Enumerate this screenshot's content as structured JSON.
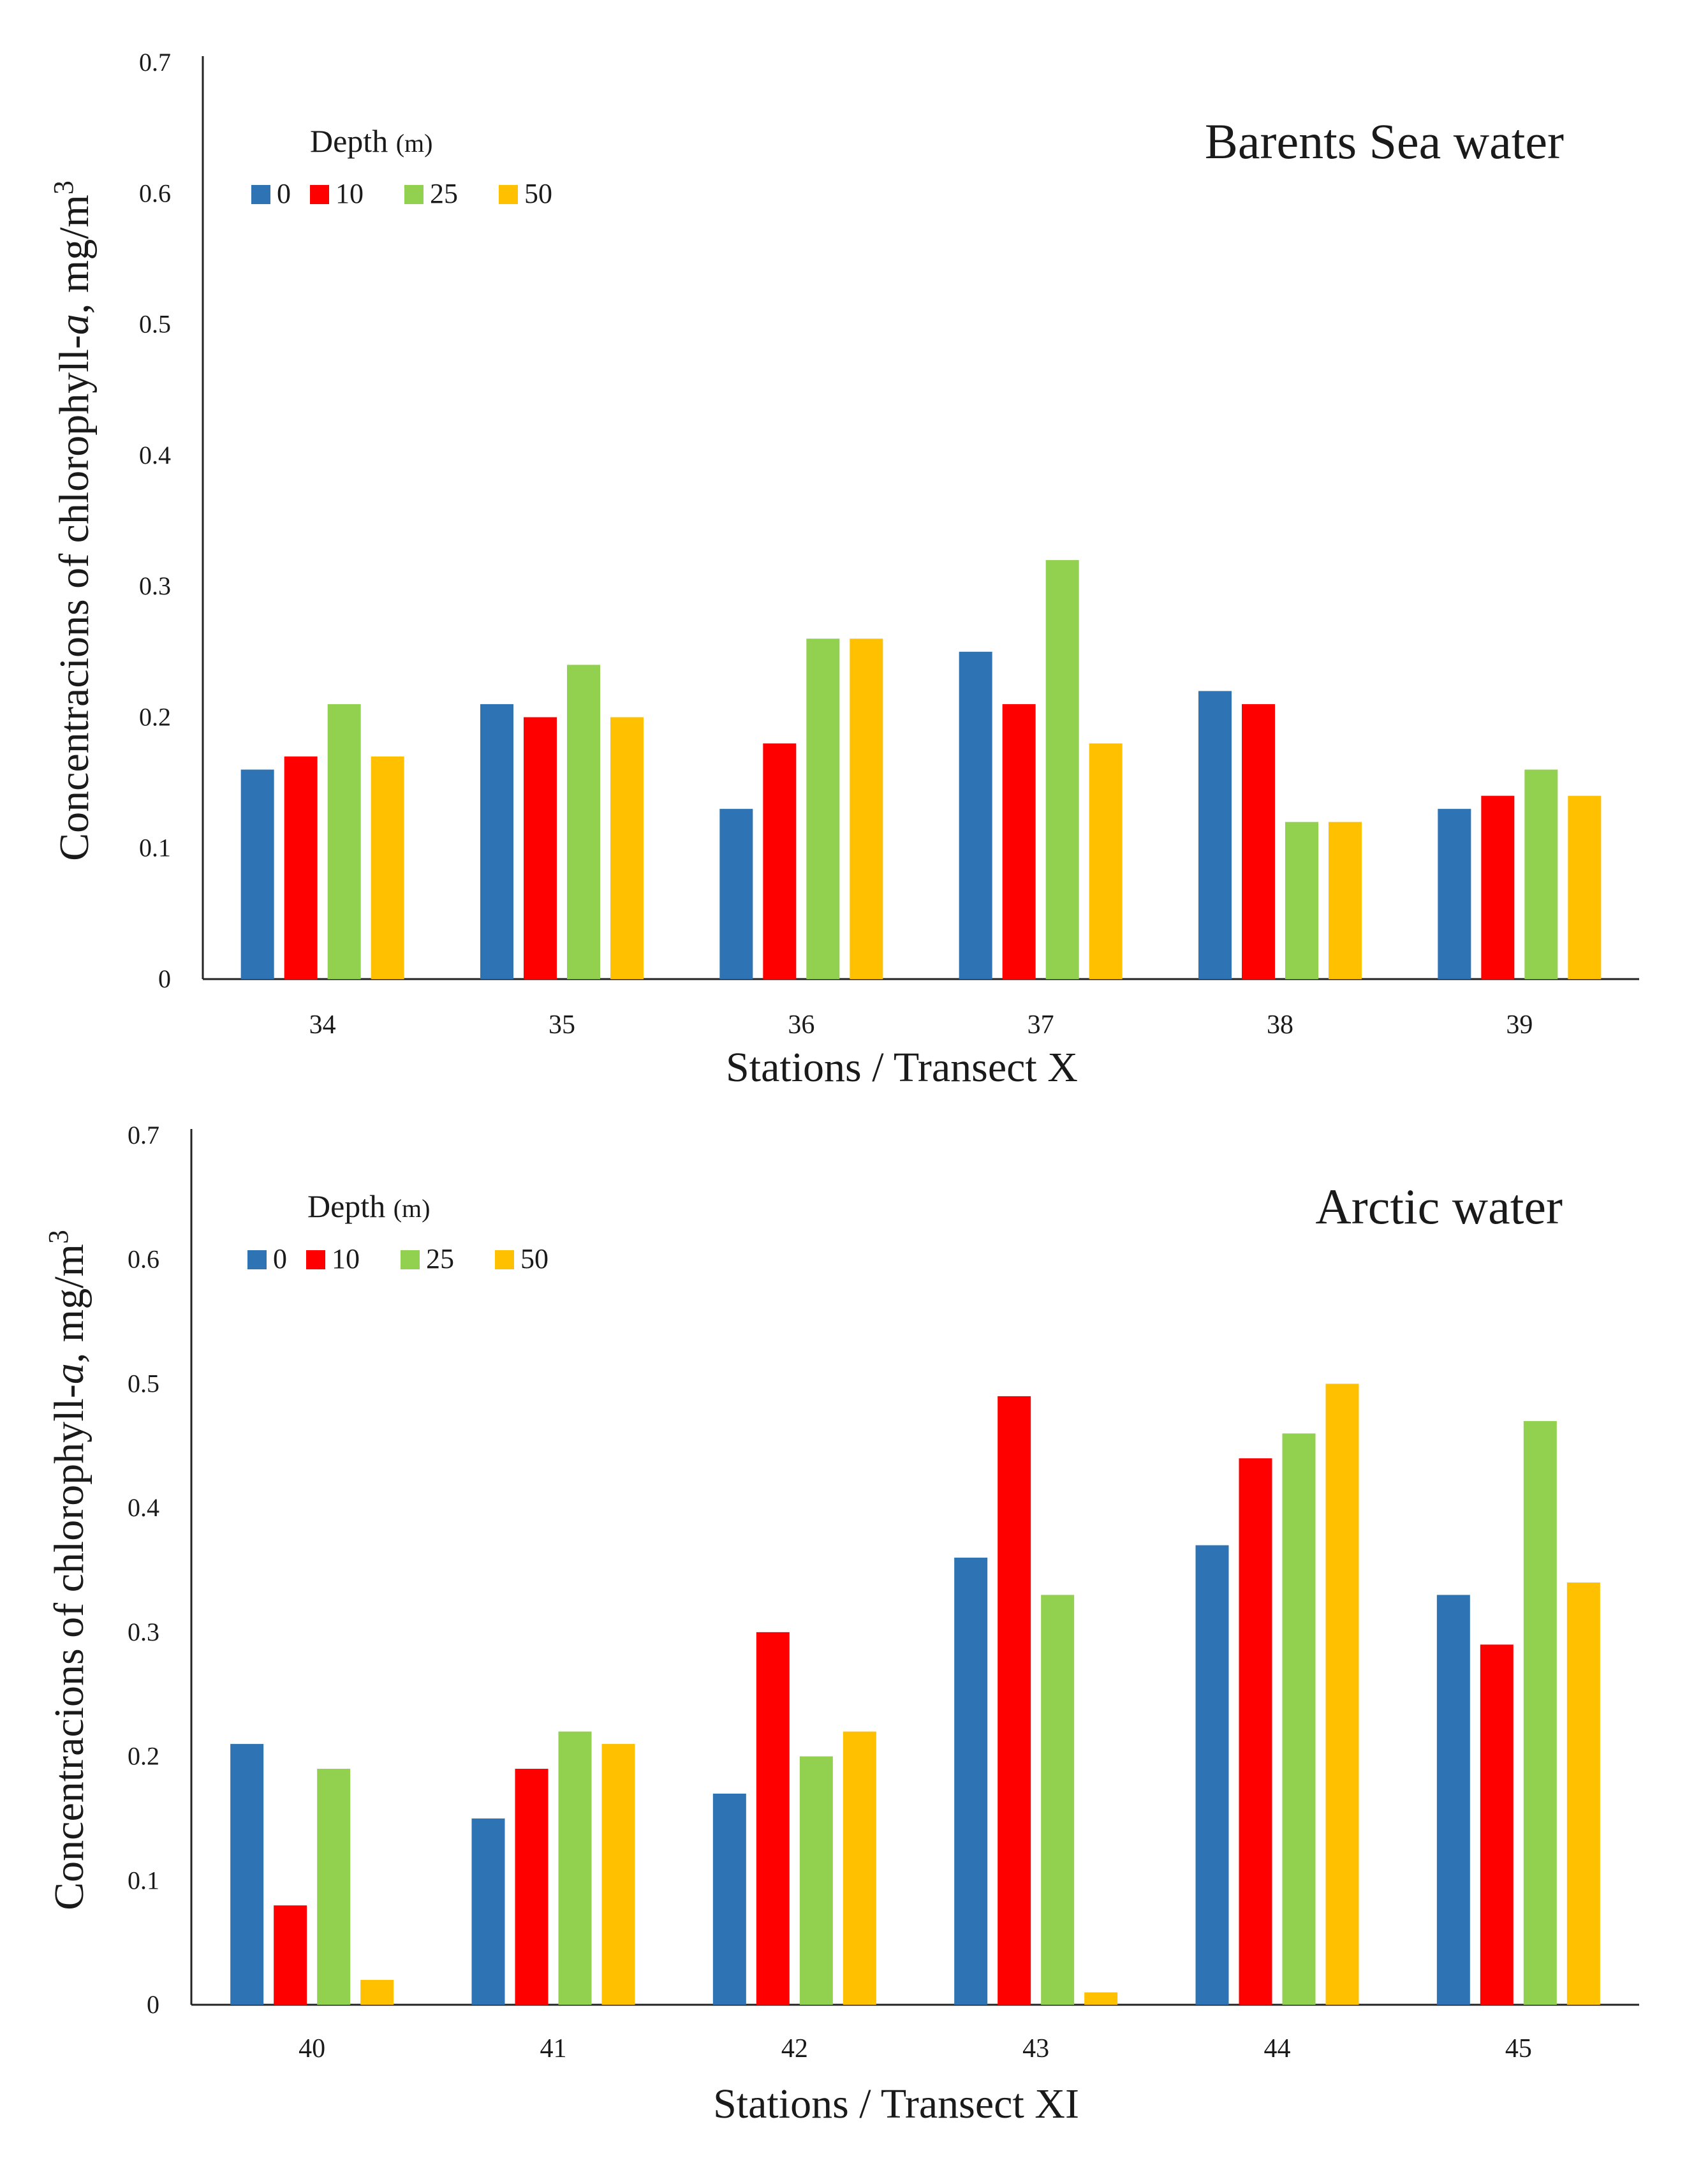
{
  "colors": {
    "0": "#2E74B5",
    "10": "#FF0000",
    "25": "#92D050",
    "50": "#FFC000"
  },
  "chart_data": [
    {
      "type": "bar",
      "title": "Barents Sea water",
      "xlabel": "Stations / Transect X",
      "ylabel": "Concentracions of chlorophyll-a, mg/m3",
      "ylabel_parts": {
        "a": "Concentracions of chlorophyll-",
        "b": "a",
        "c": ", mg/m",
        "d": "3"
      },
      "legend_title": "Depth (m)",
      "legend_title_parts": {
        "a": "Depth ",
        "b": "(m)"
      },
      "ylim": [
        0,
        0.7
      ],
      "yticks": [
        "0",
        "0.1",
        "0.2",
        "0.3",
        "0.4",
        "0.5",
        "0.6",
        "0.7"
      ],
      "categories": [
        "34",
        "35",
        "36",
        "37",
        "38",
        "39"
      ],
      "series": [
        {
          "name": "0",
          "values": [
            0.16,
            0.21,
            0.13,
            0.25,
            0.22,
            0.13
          ]
        },
        {
          "name": "10",
          "values": [
            0.17,
            0.2,
            0.18,
            0.21,
            0.21,
            0.14
          ]
        },
        {
          "name": "25",
          "values": [
            0.21,
            0.24,
            0.26,
            0.32,
            0.12,
            0.16
          ]
        },
        {
          "name": "50",
          "values": [
            0.17,
            0.2,
            0.26,
            0.18,
            0.12,
            0.14
          ]
        }
      ]
    },
    {
      "type": "bar",
      "title": "Arctic water",
      "xlabel": "Stations / Transect XI",
      "ylabel": "Concentracions of chlorophyll-a, mg/m3",
      "ylabel_parts": {
        "a": "Concentracions of chlorophyll-",
        "b": "a",
        "c": ", mg/m",
        "d": "3"
      },
      "legend_title": "Depth (m)",
      "legend_title_parts": {
        "a": "Depth ",
        "b": "(m)"
      },
      "ylim": [
        0,
        0.7
      ],
      "yticks": [
        "0",
        "0.1",
        "0.2",
        "0.3",
        "0.4",
        "0.5",
        "0.6",
        "0.7"
      ],
      "categories": [
        "40",
        "41",
        "42",
        "43",
        "44",
        "45"
      ],
      "series": [
        {
          "name": "0",
          "values": [
            0.21,
            0.15,
            0.17,
            0.36,
            0.37,
            0.33
          ]
        },
        {
          "name": "10",
          "values": [
            0.08,
            0.19,
            0.3,
            0.49,
            0.44,
            0.29
          ]
        },
        {
          "name": "25",
          "values": [
            0.19,
            0.22,
            0.2,
            0.33,
            0.46,
            0.47
          ]
        },
        {
          "name": "50",
          "values": [
            0.02,
            0.21,
            0.22,
            0.01,
            0.5,
            0.34
          ]
        }
      ]
    }
  ]
}
